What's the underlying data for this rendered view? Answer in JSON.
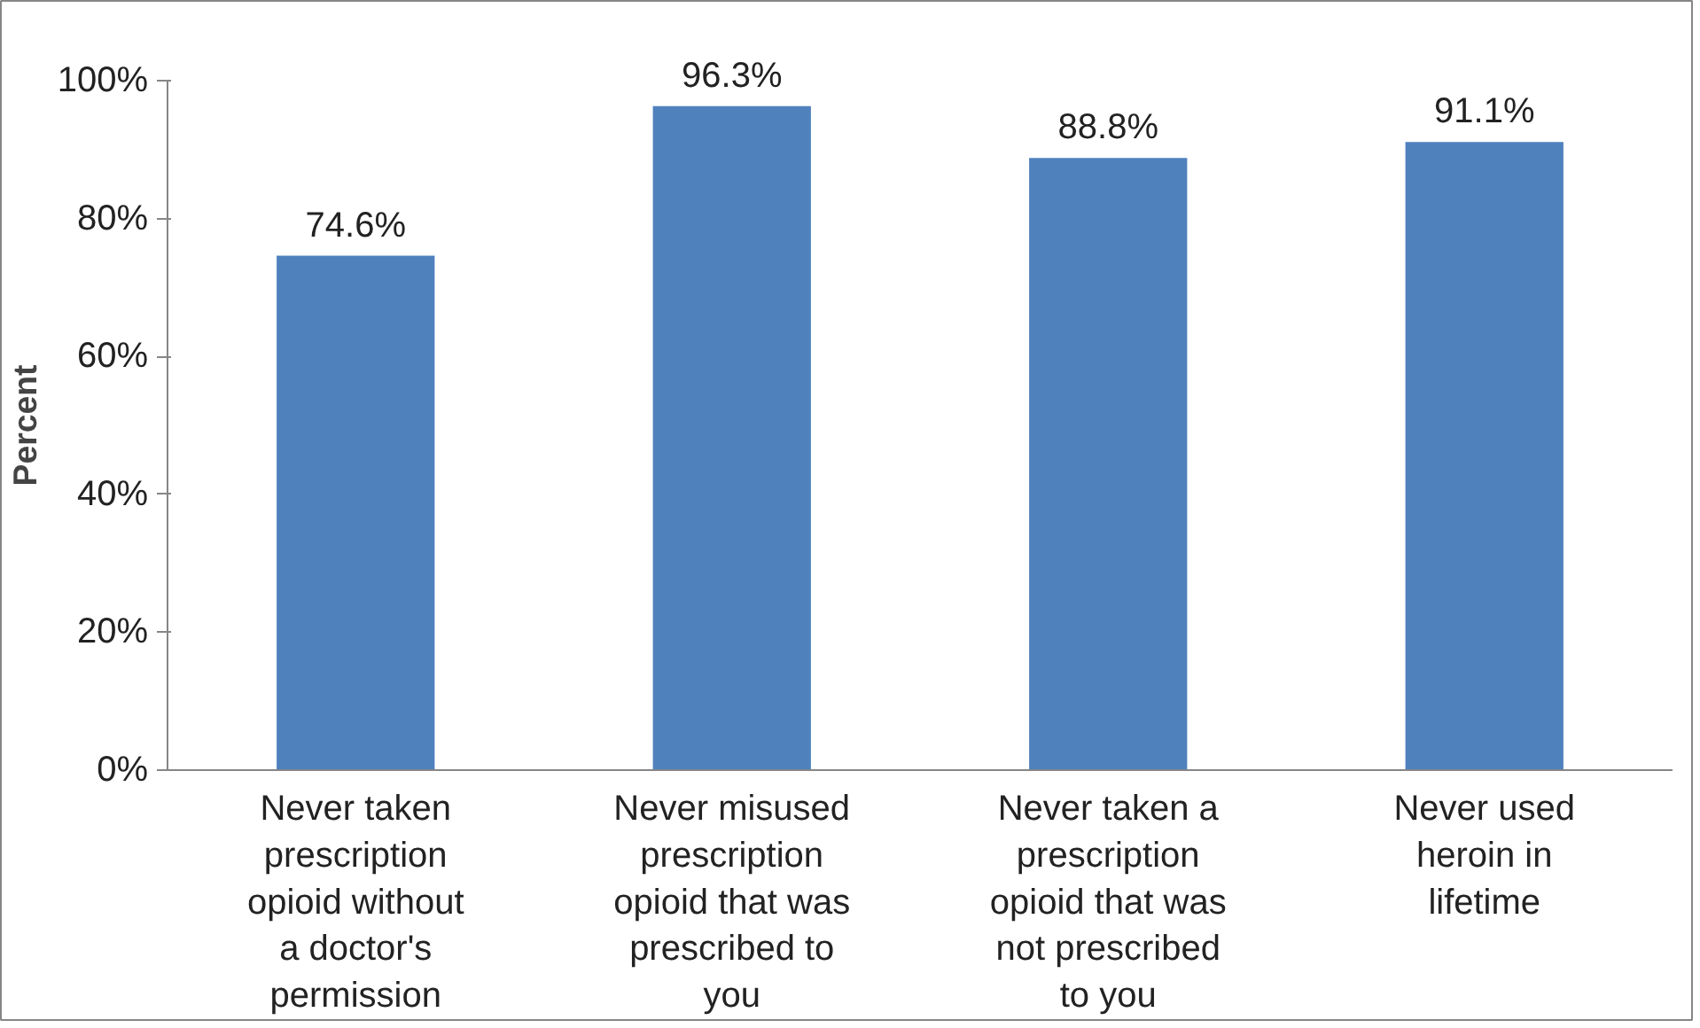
{
  "chart_data": {
    "type": "bar",
    "ylabel": "Percent",
    "categories": [
      "Never taken prescription opioid without a doctor's permission",
      "Never misused prescription opioid that was prescribed to you",
      "Never taken a prescription opioid that was not prescribed to you",
      "Never used heroin in lifetime"
    ],
    "values": [
      74.6,
      96.3,
      88.8,
      91.1
    ],
    "color": "#4f81bd",
    "value_labels": [
      "74.6%",
      "96.3%",
      "88.8%",
      "91.1%"
    ],
    "ylim": [
      0,
      100
    ],
    "yticks": [
      {
        "value": 0,
        "label": "0%"
      },
      {
        "value": 20,
        "label": "20%"
      },
      {
        "value": 40,
        "label": "40%"
      },
      {
        "value": 60,
        "label": "60%"
      },
      {
        "value": 80,
        "label": "80%"
      },
      {
        "value": 100,
        "label": "100%"
      }
    ],
    "grid": false
  }
}
